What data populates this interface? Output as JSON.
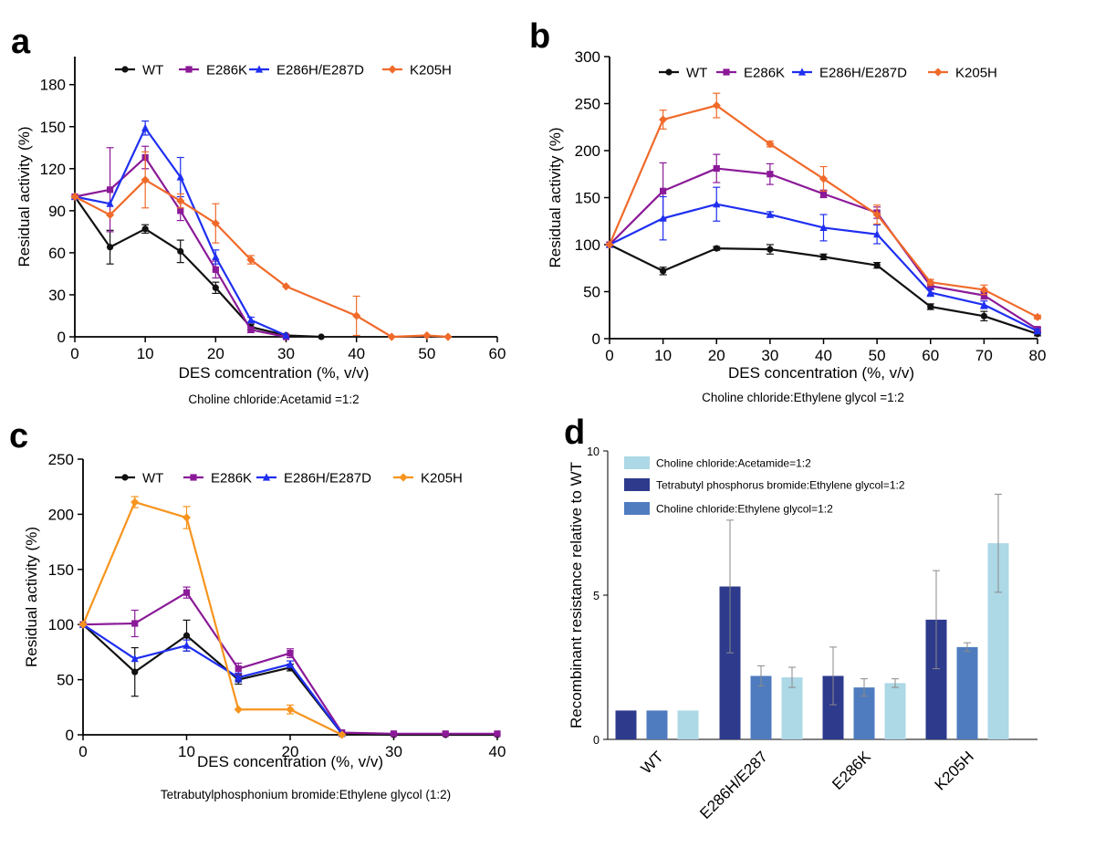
{
  "chart_data": [
    {
      "panel": "a",
      "type": "line",
      "ylabel": "Residual activity (%)",
      "xlabel": "DES comcentration (%, v/v)",
      "caption": "Choline chloride:Acetamid =1:2",
      "xlim": [
        0,
        60
      ],
      "ylim": [
        0,
        200
      ],
      "xticks": [
        0,
        10,
        20,
        30,
        40,
        50,
        60
      ],
      "yticks": [
        0,
        30,
        60,
        90,
        120,
        150,
        180
      ],
      "legend_position": "top",
      "grid": false,
      "series": [
        {
          "name": "WT",
          "color": "#111111",
          "marker": "circle",
          "x": [
            0,
            5,
            10,
            15,
            20,
            25,
            30,
            35
          ],
          "y": [
            100,
            64,
            77,
            61,
            35,
            7,
            1,
            0
          ],
          "err": [
            0,
            12,
            3,
            8,
            4,
            2,
            0,
            0
          ]
        },
        {
          "name": "E286K",
          "color": "#8B1A98",
          "marker": "square",
          "x": [
            0,
            5,
            10,
            15,
            20,
            25,
            30
          ],
          "y": [
            100,
            105,
            128,
            90,
            48,
            5,
            0
          ],
          "err": [
            0,
            30,
            8,
            7,
            6,
            2,
            0
          ]
        },
        {
          "name": "E286H/E287D",
          "color": "#1F2FF0",
          "marker": "triangle",
          "x": [
            0,
            5,
            10,
            15,
            20,
            25,
            30
          ],
          "y": [
            100,
            95,
            149,
            114,
            57,
            12,
            1
          ],
          "err": [
            0,
            0,
            5,
            14,
            5,
            2,
            0
          ]
        },
        {
          "name": "K205H",
          "color": "#F06A2A",
          "marker": "diamond",
          "x": [
            0,
            5,
            10,
            15,
            20,
            25,
            30,
            40,
            45,
            50,
            53
          ],
          "y": [
            100,
            87,
            112,
            97,
            81,
            55,
            36,
            15,
            0,
            1,
            0
          ],
          "err": [
            0,
            0,
            20,
            5,
            14,
            3,
            0,
            14,
            0,
            0,
            0
          ]
        }
      ]
    },
    {
      "panel": "b",
      "type": "line",
      "ylabel": "Residual activity (%)",
      "xlabel": "DES concentration (%, v/v)",
      "caption": "Choline chloride:Ethylene glycol =1:2",
      "xlim": [
        0,
        80
      ],
      "ylim": [
        0,
        300
      ],
      "xticks": [
        0,
        10,
        20,
        30,
        40,
        50,
        60,
        70,
        80
      ],
      "yticks": [
        0,
        50,
        100,
        150,
        200,
        250,
        300
      ],
      "legend_position": "top",
      "grid": false,
      "series": [
        {
          "name": "WT",
          "color": "#111111",
          "marker": "circle",
          "x": [
            0,
            10,
            20,
            30,
            40,
            50,
            60,
            70,
            80
          ],
          "y": [
            100,
            72,
            96,
            95,
            87,
            78,
            34,
            24,
            5
          ],
          "err": [
            0,
            4,
            2,
            5,
            3,
            3,
            3,
            5,
            2
          ]
        },
        {
          "name": "E286K",
          "color": "#8B1A98",
          "marker": "square",
          "x": [
            0,
            10,
            20,
            30,
            40,
            50,
            60,
            70,
            80
          ],
          "y": [
            100,
            157,
            181,
            175,
            154,
            134,
            56,
            46,
            10
          ],
          "err": [
            0,
            30,
            15,
            11,
            4,
            6,
            4,
            4,
            2
          ]
        },
        {
          "name": "E286H/E287D",
          "color": "#1F2FF0",
          "marker": "triangle",
          "x": [
            0,
            10,
            20,
            30,
            40,
            50,
            60,
            70,
            80
          ],
          "y": [
            100,
            128,
            143,
            132,
            118,
            111,
            49,
            36,
            8
          ],
          "err": [
            0,
            23,
            18,
            3,
            14,
            10,
            4,
            4,
            2
          ]
        },
        {
          "name": "K205H",
          "color": "#F06A2A",
          "marker": "diamond",
          "x": [
            0,
            10,
            20,
            30,
            40,
            50,
            60,
            70,
            80
          ],
          "y": [
            100,
            233,
            248,
            207,
            170,
            132,
            60,
            52,
            23
          ],
          "err": [
            0,
            10,
            13,
            3,
            13,
            10,
            3,
            5,
            2
          ]
        }
      ]
    },
    {
      "panel": "c",
      "type": "line",
      "ylabel": "Residual activity (%)",
      "xlabel": "DES concentration (%, v/v)",
      "caption": "Tetrabutylphosphonium bromide:Ethylene glycol (1:2)",
      "xlim": [
        0,
        40
      ],
      "ylim": [
        0,
        250
      ],
      "xticks": [
        0,
        10,
        20,
        30,
        40
      ],
      "yticks": [
        0,
        50,
        100,
        150,
        200,
        250
      ],
      "legend_position": "top",
      "grid": false,
      "series": [
        {
          "name": "WT",
          "color": "#111111",
          "marker": "circle",
          "x": [
            0,
            5,
            10,
            15,
            20,
            25,
            30,
            35,
            40
          ],
          "y": [
            100,
            57,
            90,
            50,
            61,
            1,
            0,
            0,
            0
          ],
          "err": [
            0,
            22,
            14,
            4,
            3,
            0,
            0,
            0,
            0
          ]
        },
        {
          "name": "E286K",
          "color": "#8B1A98",
          "marker": "square",
          "x": [
            0,
            5,
            10,
            15,
            20,
            25,
            30,
            35,
            40
          ],
          "y": [
            100,
            101,
            129,
            60,
            74,
            2,
            1,
            1,
            1
          ],
          "err": [
            0,
            12,
            5,
            5,
            4,
            0,
            0,
            0,
            0
          ]
        },
        {
          "name": "E286H/E287D",
          "color": "#1F2FF0",
          "marker": "triangle",
          "x": [
            0,
            5,
            10,
            15,
            20,
            25
          ],
          "y": [
            100,
            69,
            81,
            52,
            64,
            1
          ],
          "err": [
            0,
            0,
            5,
            4,
            3,
            0
          ]
        },
        {
          "name": "K205H",
          "color": "#F7941D",
          "marker": "diamond",
          "x": [
            0,
            5,
            10,
            15,
            20,
            25
          ],
          "y": [
            100,
            211,
            197,
            23,
            23,
            0
          ],
          "err": [
            0,
            5,
            10,
            0,
            4,
            0
          ]
        }
      ]
    },
    {
      "panel": "d",
      "type": "bar",
      "ylabel": "Recombinant resistance relative to WT",
      "xlabel": "",
      "ylim": [
        0,
        10
      ],
      "yticks": [
        0,
        5,
        10
      ],
      "legend_position": "top-left",
      "grid": false,
      "categories": [
        "WT",
        "E286H/E287",
        "E286K",
        "K205H"
      ],
      "legend_order": [
        2,
        0,
        1
      ],
      "series": [
        {
          "name": "Tetrabutyl phosphorus bromide:Ethylene glycol=1:2",
          "color": "#2E3A8C",
          "values": [
            1.0,
            5.3,
            2.2,
            4.15
          ],
          "err": [
            0,
            2.3,
            1.0,
            1.7
          ]
        },
        {
          "name": "Choline chloride:Ethylene glycol=1:2",
          "color": "#4F7CBF",
          "values": [
            1.0,
            2.2,
            1.8,
            3.2
          ],
          "err": [
            0,
            0.35,
            0.3,
            0.15
          ]
        },
        {
          "name": "Choline chloride:Acetamide=1:2",
          "color": "#ADD8E6",
          "values": [
            1.0,
            2.15,
            1.95,
            6.8
          ],
          "err": [
            0,
            0.35,
            0.15,
            1.7
          ]
        }
      ]
    }
  ],
  "panels": {
    "a": {
      "label": "a"
    },
    "b": {
      "label": "b"
    },
    "c": {
      "label": "c"
    },
    "d": {
      "label": "d"
    }
  }
}
